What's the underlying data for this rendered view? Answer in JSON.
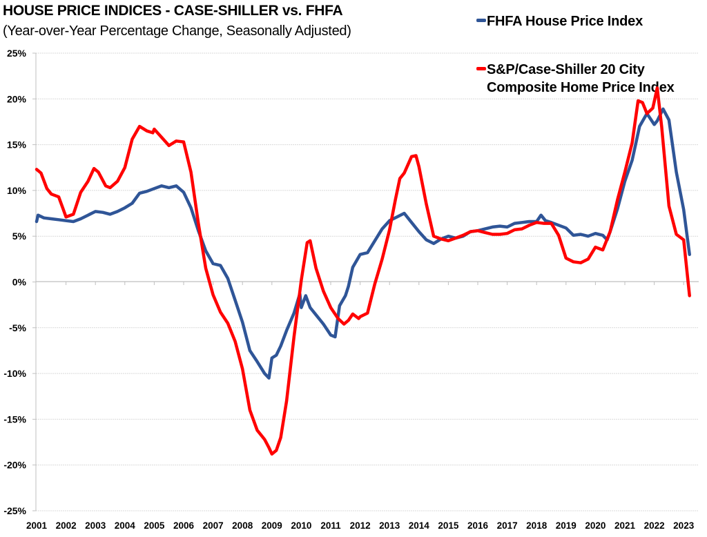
{
  "header": {
    "title": "HOUSE PRICE INDICES - CASE-SHILLER vs. FHFA",
    "subtitle": "(Year-over-Year Percentage Change, Seasonally Adjusted)"
  },
  "legend": {
    "items": [
      {
        "label": "FHFA House Price Index",
        "color": "#2F5597"
      },
      {
        "label_line1": "S&P/Case-Shiller 20 City",
        "label_line2": "Composite Home Price Index",
        "color": "#FF0000"
      }
    ]
  },
  "chart_data": {
    "type": "line",
    "title": "HOUSE PRICE INDICES - CASE-SHILLER vs. FHFA",
    "subtitle": "(Year-over-Year Percentage Change, Seasonally Adjusted)",
    "xlabel": "",
    "ylabel": "",
    "xlim": [
      2001.0,
      2023.25
    ],
    "ylim": [
      -25,
      25
    ],
    "yticks": [
      25,
      20,
      15,
      10,
      5,
      0,
      -5,
      -10,
      -15,
      -20,
      -25
    ],
    "ytick_labels": [
      "25%",
      "20%",
      "15%",
      "10%",
      "5%",
      "0%",
      "-5%",
      "-10%",
      "-15%",
      "-20%",
      "-25%"
    ],
    "xtick_labels": [
      "2001",
      "2002",
      "2003",
      "2004",
      "2005",
      "2006",
      "2007",
      "2008",
      "2009",
      "2010",
      "2011",
      "2012",
      "2013",
      "2014",
      "2015",
      "2016",
      "2017",
      "2018",
      "2019",
      "2020",
      "2021",
      "2022",
      "2023"
    ],
    "grid": "horizontal",
    "legend_position": "top-right",
    "series": [
      {
        "name": "FHFA House Price Index",
        "color": "#2F5597",
        "x": [
          2001.0,
          2001.05,
          2001.25,
          2001.5,
          2001.75,
          2002.0,
          2002.25,
          2002.5,
          2002.75,
          2003.0,
          2003.25,
          2003.5,
          2003.75,
          2004.0,
          2004.25,
          2004.5,
          2004.75,
          2005.0,
          2005.25,
          2005.5,
          2005.75,
          2006.0,
          2006.25,
          2006.5,
          2006.75,
          2007.0,
          2007.25,
          2007.5,
          2007.75,
          2008.0,
          2008.25,
          2008.5,
          2008.75,
          2008.9,
          2009.0,
          2009.15,
          2009.3,
          2009.5,
          2009.75,
          2009.95,
          2010.0,
          2010.15,
          2010.3,
          2010.5,
          2010.75,
          2011.0,
          2011.15,
          2011.3,
          2011.5,
          2011.6,
          2011.75,
          2012.0,
          2012.25,
          2012.5,
          2012.75,
          2013.0,
          2013.25,
          2013.5,
          2013.75,
          2014.0,
          2014.25,
          2014.5,
          2014.75,
          2015.0,
          2015.25,
          2015.5,
          2015.75,
          2016.0,
          2016.25,
          2016.5,
          2016.75,
          2017.0,
          2017.25,
          2017.5,
          2017.75,
          2018.0,
          2018.15,
          2018.3,
          2018.5,
          2018.75,
          2019.0,
          2019.25,
          2019.5,
          2019.75,
          2020.0,
          2020.25,
          2020.4,
          2020.5,
          2020.75,
          2021.0,
          2021.25,
          2021.5,
          2021.75,
          2022.0,
          2022.1,
          2022.3,
          2022.5,
          2022.75,
          2023.0,
          2023.2
        ],
        "y": [
          6.6,
          7.3,
          7.0,
          6.9,
          6.8,
          6.7,
          6.6,
          6.9,
          7.3,
          7.7,
          7.6,
          7.4,
          7.7,
          8.1,
          8.6,
          9.7,
          9.9,
          10.2,
          10.5,
          10.3,
          10.5,
          9.8,
          8.1,
          5.6,
          3.4,
          2.0,
          1.8,
          0.4,
          -2.0,
          -4.4,
          -7.5,
          -8.7,
          -10.0,
          -10.5,
          -8.3,
          -8.0,
          -7.0,
          -5.3,
          -3.4,
          -1.3,
          -2.8,
          -1.5,
          -2.8,
          -3.6,
          -4.6,
          -5.8,
          -6.0,
          -2.6,
          -1.5,
          -0.5,
          1.6,
          3.0,
          3.2,
          4.5,
          5.8,
          6.7,
          7.1,
          7.5,
          6.5,
          5.5,
          4.6,
          4.2,
          4.7,
          5.0,
          4.8,
          5.0,
          5.5,
          5.6,
          5.8,
          6.0,
          6.1,
          6.0,
          6.4,
          6.5,
          6.6,
          6.6,
          7.3,
          6.7,
          6.5,
          6.2,
          5.9,
          5.1,
          5.2,
          5.0,
          5.3,
          5.1,
          4.6,
          5.5,
          8.0,
          11.0,
          13.3,
          17.0,
          18.4,
          17.2,
          17.6,
          18.9,
          17.7,
          12.0,
          7.9,
          3.0
        ]
      },
      {
        "name": "S&P/Case-Shiller 20 City Composite Home Price Index",
        "color": "#FF0000",
        "x": [
          2001.0,
          2001.15,
          2001.35,
          2001.5,
          2001.75,
          2001.9,
          2002.0,
          2002.25,
          2002.5,
          2002.75,
          2002.95,
          2003.1,
          2003.35,
          2003.5,
          2003.75,
          2004.0,
          2004.25,
          2004.5,
          2004.75,
          2004.95,
          2005.0,
          2005.25,
          2005.5,
          2005.75,
          2006.0,
          2006.25,
          2006.5,
          2006.75,
          2007.0,
          2007.25,
          2007.5,
          2007.75,
          2008.0,
          2008.25,
          2008.5,
          2008.75,
          2008.9,
          2009.0,
          2009.15,
          2009.3,
          2009.5,
          2009.75,
          2010.0,
          2010.2,
          2010.3,
          2010.5,
          2010.75,
          2011.0,
          2011.25,
          2011.45,
          2011.6,
          2011.75,
          2011.95,
          2012.0,
          2012.25,
          2012.5,
          2012.75,
          2013.0,
          2013.2,
          2013.35,
          2013.5,
          2013.75,
          2013.9,
          2014.0,
          2014.25,
          2014.5,
          2014.75,
          2015.0,
          2015.25,
          2015.5,
          2015.75,
          2016.0,
          2016.25,
          2016.5,
          2016.75,
          2017.0,
          2017.25,
          2017.5,
          2017.75,
          2018.0,
          2018.25,
          2018.5,
          2018.75,
          2019.0,
          2019.25,
          2019.5,
          2019.75,
          2020.0,
          2020.25,
          2020.5,
          2020.75,
          2021.0,
          2021.25,
          2021.45,
          2021.6,
          2021.75,
          2021.95,
          2022.1,
          2022.25,
          2022.5,
          2022.75,
          2023.0,
          2023.2
        ],
        "y": [
          12.3,
          11.9,
          10.2,
          9.6,
          9.3,
          8.0,
          7.1,
          7.4,
          9.8,
          11.0,
          12.4,
          12.0,
          10.5,
          10.3,
          11.0,
          12.5,
          15.6,
          17.0,
          16.5,
          16.3,
          16.7,
          15.8,
          14.9,
          15.4,
          15.3,
          12.0,
          6.4,
          1.5,
          -1.4,
          -3.3,
          -4.5,
          -6.5,
          -9.5,
          -14.0,
          -16.2,
          -17.2,
          -18.1,
          -18.8,
          -18.4,
          -17.0,
          -13.0,
          -6.0,
          0.2,
          4.3,
          4.5,
          1.5,
          -1.0,
          -2.8,
          -4.0,
          -4.6,
          -4.2,
          -3.5,
          -4.0,
          -3.8,
          -3.4,
          -0.2,
          2.5,
          5.7,
          9.0,
          11.3,
          11.9,
          13.7,
          13.8,
          12.6,
          8.5,
          5.0,
          4.7,
          4.5,
          4.8,
          5.1,
          5.5,
          5.6,
          5.4,
          5.2,
          5.2,
          5.3,
          5.7,
          5.8,
          6.2,
          6.5,
          6.4,
          6.4,
          5.1,
          2.6,
          2.2,
          2.1,
          2.5,
          3.8,
          3.5,
          5.5,
          9.0,
          12.0,
          15.2,
          19.8,
          19.6,
          18.4,
          19.0,
          21.2,
          17.0,
          8.3,
          5.2,
          4.6,
          -1.5
        ]
      }
    ]
  }
}
